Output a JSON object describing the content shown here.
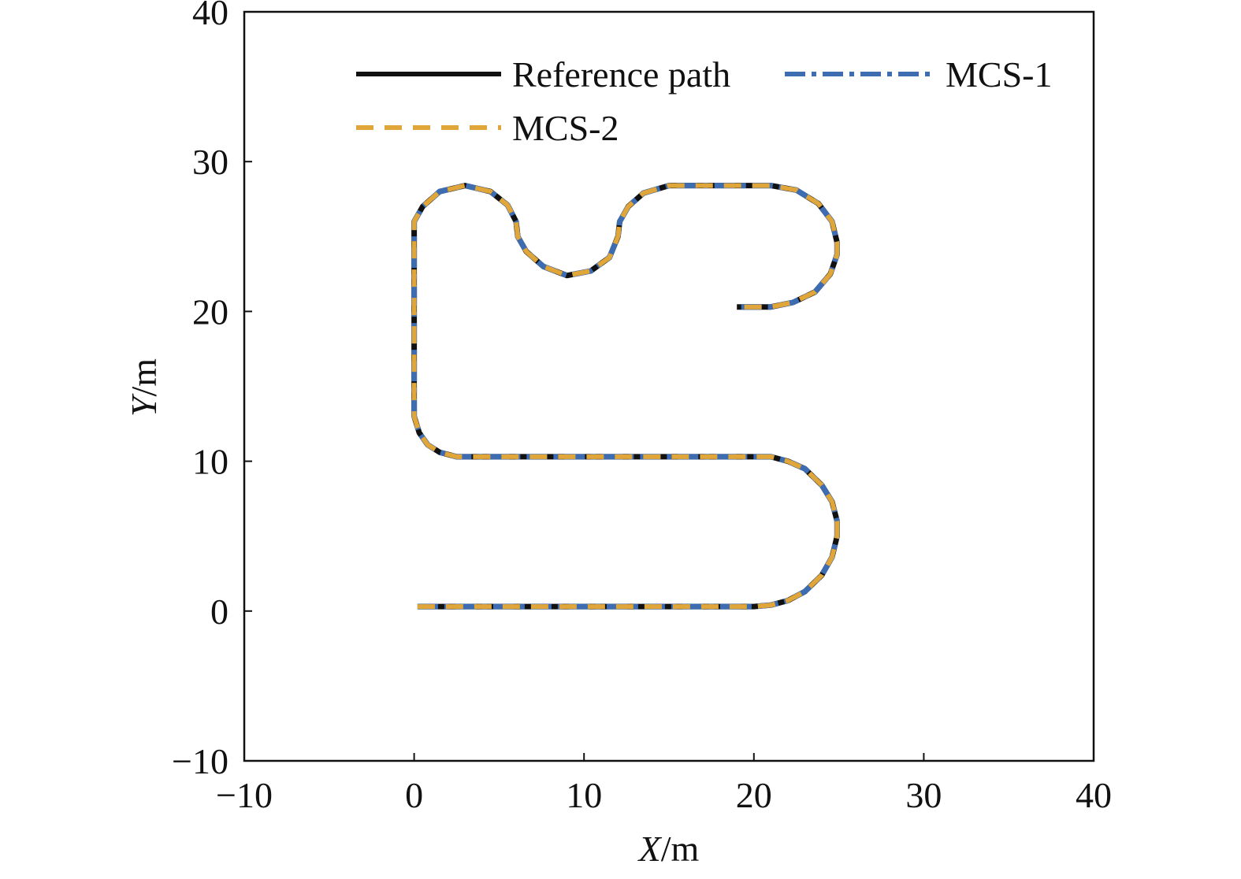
{
  "chart_data": {
    "type": "line",
    "title": "",
    "xlabel": {
      "var": "X",
      "unit": "/m"
    },
    "ylabel": {
      "var": "Y",
      "unit": "/m"
    },
    "xlim": [
      -10,
      40
    ],
    "ylim": [
      -10,
      40
    ],
    "xticks": [
      -10,
      0,
      10,
      20,
      30,
      40
    ],
    "yticks": [
      -10,
      0,
      10,
      20,
      30,
      40
    ],
    "x_tick_labels": [
      "−10",
      "0",
      "10",
      "20",
      "30",
      "40"
    ],
    "y_tick_labels": [
      "−10",
      "0",
      "10",
      "20",
      "30",
      "40"
    ],
    "grid": false,
    "legend_position": "top",
    "series": [
      {
        "name": "Reference path",
        "color": "#111111",
        "style": "solid"
      },
      {
        "name": "MCS-1",
        "color": "#3d6cb0",
        "style": "dash-dot"
      },
      {
        "name": "MCS-2",
        "color": "#e0a63a",
        "style": "dashed"
      }
    ],
    "path": [
      [
        0.2,
        0.3
      ],
      [
        20.0,
        0.3
      ],
      [
        21.0,
        0.4
      ],
      [
        22.0,
        0.7
      ],
      [
        23.0,
        1.3
      ],
      [
        24.0,
        2.4
      ],
      [
        24.6,
        3.6
      ],
      [
        24.9,
        5.0
      ],
      [
        24.9,
        6.0
      ],
      [
        24.6,
        7.3
      ],
      [
        24.0,
        8.4
      ],
      [
        23.0,
        9.5
      ],
      [
        22.0,
        10.0
      ],
      [
        21.0,
        10.3
      ],
      [
        20.0,
        10.3
      ],
      [
        2.5,
        10.3
      ],
      [
        1.5,
        10.6
      ],
      [
        0.8,
        11.1
      ],
      [
        0.3,
        11.9
      ],
      [
        0.0,
        13.0
      ],
      [
        0.0,
        26.0
      ],
      [
        0.5,
        27.0
      ],
      [
        1.5,
        28.0
      ],
      [
        3.0,
        28.4
      ],
      [
        4.5,
        28.0
      ],
      [
        5.5,
        27.1
      ],
      [
        6.0,
        26.0
      ],
      [
        6.1,
        25.0
      ],
      [
        6.6,
        24.0
      ],
      [
        7.6,
        23.0
      ],
      [
        9.0,
        22.4
      ],
      [
        10.4,
        22.7
      ],
      [
        11.5,
        23.6
      ],
      [
        12.0,
        25.0
      ],
      [
        12.1,
        26.0
      ],
      [
        12.6,
        27.0
      ],
      [
        13.5,
        27.9
      ],
      [
        15.0,
        28.4
      ],
      [
        21.0,
        28.4
      ],
      [
        22.5,
        28.1
      ],
      [
        23.8,
        27.2
      ],
      [
        24.6,
        26.0
      ],
      [
        24.9,
        24.6
      ],
      [
        24.9,
        23.8
      ],
      [
        24.5,
        22.5
      ],
      [
        23.6,
        21.3
      ],
      [
        22.3,
        20.6
      ],
      [
        21.0,
        20.3
      ],
      [
        19.0,
        20.3
      ]
    ]
  }
}
